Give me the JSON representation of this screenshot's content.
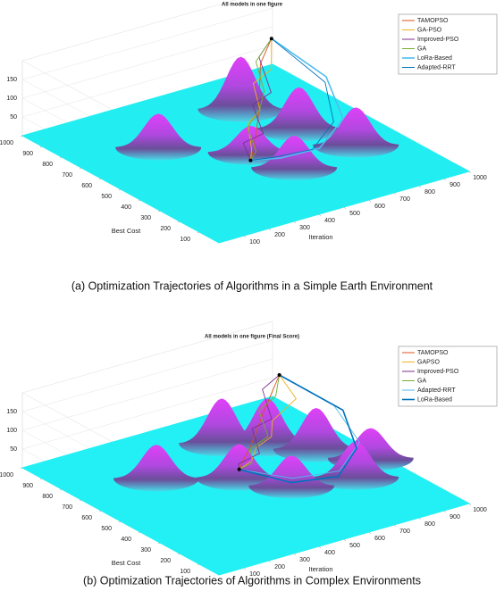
{
  "chart_data": [
    {
      "type": "surface3d",
      "title": "All models in one figure",
      "caption": "(a) Optimization Trajectories of Algorithms in a Simple Earth Environment",
      "xlabel": "Iteration",
      "ylabel": "Best Cost",
      "xlim": [
        0,
        1000
      ],
      "ylim": [
        0,
        1000
      ],
      "zlim": [
        0,
        200
      ],
      "xticks": [
        100,
        200,
        300,
        400,
        500,
        600,
        700,
        800,
        900,
        1000
      ],
      "yticks": [
        100,
        200,
        300,
        400,
        500,
        600,
        700,
        800,
        900,
        1000
      ],
      "zticks": [
        50,
        100,
        150
      ],
      "legend": "upper right",
      "surface_color": "#22eef2",
      "peaks": {
        "x": [
          700,
          300,
          760,
          520,
          560,
          830
        ],
        "y": [
          780,
          690,
          560,
          500,
          330,
          360
        ],
        "z": [
          140,
          90,
          110,
          70,
          85,
          100
        ]
      },
      "series": [
        {
          "name": "TAMOPSO",
          "color": "#d95319",
          "x": [
            760,
            700,
            650,
            600,
            560,
            520,
            480
          ],
          "y": [
            700,
            680,
            620,
            560,
            520,
            480,
            450
          ],
          "z": [
            200,
            150,
            110,
            80,
            50,
            25,
            0
          ]
        },
        {
          "name": "GA-PSO",
          "color": "#edb120",
          "x": [
            760,
            720,
            640,
            620,
            540,
            500,
            480
          ],
          "y": [
            700,
            650,
            640,
            580,
            540,
            470,
            450
          ],
          "z": [
            200,
            140,
            120,
            70,
            60,
            20,
            0
          ]
        },
        {
          "name": "Improved-PSO",
          "color": "#7e2f8e",
          "x": [
            760,
            710,
            680,
            590,
            570,
            490,
            480
          ],
          "y": [
            700,
            700,
            600,
            580,
            500,
            500,
            450
          ],
          "z": [
            200,
            160,
            100,
            90,
            40,
            30,
            0
          ]
        },
        {
          "name": "GA",
          "color": "#77ac30",
          "x": [
            760,
            690,
            660,
            610,
            530,
            510,
            480
          ],
          "y": [
            700,
            690,
            610,
            570,
            530,
            460,
            450
          ],
          "z": [
            200,
            155,
            105,
            75,
            55,
            15,
            0
          ]
        },
        {
          "name": "LoRa-Based",
          "color": "#4dbeee",
          "x": [
            760,
            900,
            850,
            700,
            560,
            480
          ],
          "y": [
            700,
            600,
            450,
            380,
            400,
            450
          ],
          "z": [
            200,
            100,
            40,
            10,
            5,
            0
          ]
        },
        {
          "name": "Adapted-RRT",
          "color": "#0072bd",
          "x": [
            760,
            880,
            820,
            680,
            540,
            480
          ],
          "y": [
            700,
            580,
            460,
            390,
            420,
            450
          ],
          "z": [
            200,
            95,
            35,
            8,
            4,
            0
          ]
        }
      ]
    },
    {
      "type": "surface3d",
      "title": "All models in one figure (Final Score)",
      "caption": "(b) Optimization Trajectories of Algorithms in Complex Environments",
      "xlabel": "Iteration",
      "ylabel": "Best Cost",
      "xlim": [
        0,
        1000
      ],
      "ylim": [
        0,
        1000
      ],
      "zlim": [
        0,
        200
      ],
      "xticks": [
        100,
        200,
        300,
        400,
        500,
        600,
        700,
        800,
        900,
        1000
      ],
      "yticks": [
        100,
        200,
        300,
        400,
        500,
        600,
        700,
        800,
        900,
        1000
      ],
      "zticks": [
        50,
        100,
        150
      ],
      "legend": "upper right",
      "surface_color": "#22f0f4",
      "peaks": {
        "x": [
          640,
          760,
          300,
          860,
          520,
          620,
          830,
          960
        ],
        "y": [
          800,
          720,
          700,
          600,
          560,
          420,
          360,
          450
        ],
        "z": [
          120,
          120,
          90,
          110,
          90,
          80,
          95,
          80
        ]
      },
      "series": [
        {
          "name": "TAMOPSO",
          "color": "#d95319",
          "x": [
            760,
            720,
            680,
            640,
            600,
            560,
            543
          ],
          "y": [
            660,
            650,
            640,
            620,
            600,
            590,
            588
          ],
          "z": [
            200,
            160,
            120,
            90,
            60,
            30,
            10
          ]
        },
        {
          "name": "GAPSO",
          "color": "#edb120",
          "x": [
            760,
            780,
            700,
            650,
            620,
            570,
            543
          ],
          "y": [
            660,
            600,
            620,
            560,
            600,
            560,
            588
          ],
          "z": [
            200,
            150,
            100,
            85,
            50,
            35,
            10
          ]
        },
        {
          "name": "Improved-PSO",
          "color": "#7e2f8e",
          "x": [
            760,
            700,
            690,
            620,
            610,
            550,
            543
          ],
          "y": [
            660,
            670,
            610,
            620,
            570,
            600,
            588
          ],
          "z": [
            200,
            170,
            110,
            95,
            45,
            20,
            10
          ]
        },
        {
          "name": "GA",
          "color": "#77ac30",
          "x": [
            760,
            730,
            670,
            660,
            590,
            580,
            543
          ],
          "y": [
            660,
            640,
            650,
            590,
            590,
            570,
            588
          ],
          "z": [
            200,
            155,
            125,
            75,
            55,
            25,
            10
          ]
        },
        {
          "name": "Adapted-RRT",
          "color": "#4dbeee",
          "x": [
            760,
            900,
            900,
            780,
            640,
            543
          ],
          "y": [
            660,
            560,
            430,
            380,
            440,
            588
          ],
          "z": [
            200,
            120,
            60,
            20,
            10,
            10
          ]
        },
        {
          "name": "LoRa-Based",
          "color": "#0072bd",
          "x": [
            760,
            920,
            880,
            760,
            620,
            543
          ],
          "y": [
            660,
            540,
            420,
            360,
            420,
            588
          ],
          "z": [
            200,
            110,
            50,
            15,
            8,
            10
          ]
        }
      ]
    }
  ]
}
